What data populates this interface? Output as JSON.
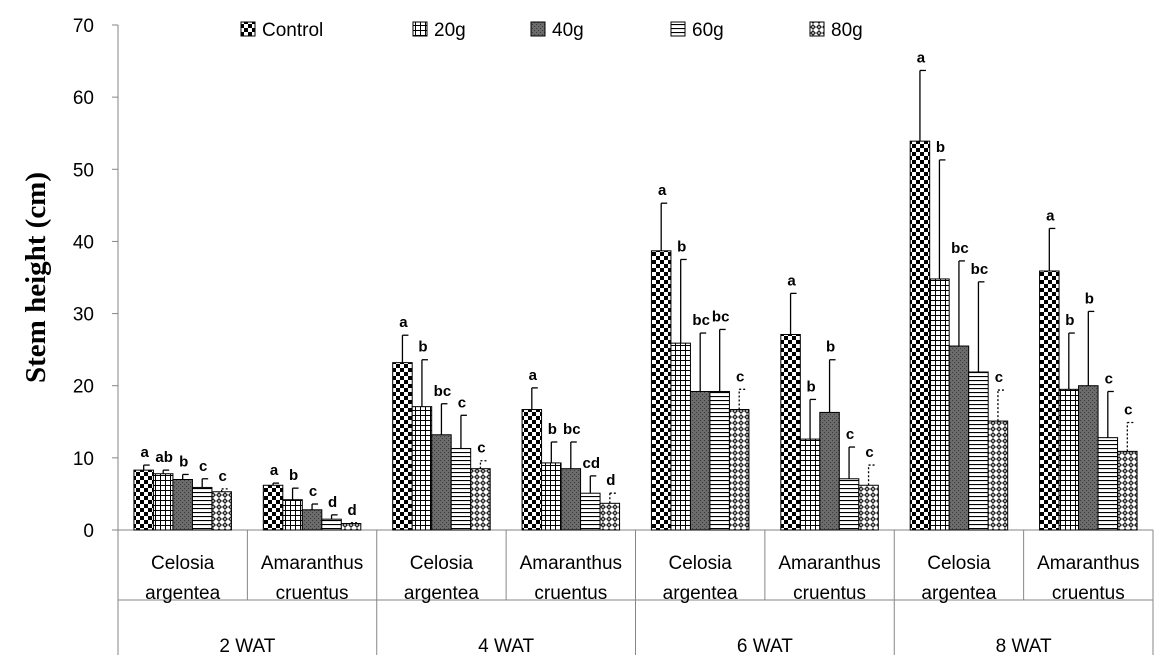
{
  "chart_data": {
    "type": "bar",
    "ylabel": "Stem height (cm)",
    "ylim": [
      0,
      70
    ],
    "yticks": [
      0,
      10,
      20,
      30,
      40,
      50,
      60,
      70
    ],
    "grid": false,
    "legend_position": "top",
    "groups": [
      "2 WAT",
      "4 WAT",
      "6 WAT",
      "8 WAT"
    ],
    "categories": [
      {
        "group": "2 WAT",
        "line1": "Celosia",
        "line2": "argentea"
      },
      {
        "group": "2 WAT",
        "line1": "Amaranthus",
        "line2": "cruentus"
      },
      {
        "group": "4 WAT",
        "line1": "Celosia",
        "line2": "argentea"
      },
      {
        "group": "4 WAT",
        "line1": "Amaranthus",
        "line2": "cruentus"
      },
      {
        "group": "6 WAT",
        "line1": "Celosia",
        "line2": "argentea"
      },
      {
        "group": "6 WAT",
        "line1": "Amaranthus",
        "line2": "cruentus"
      },
      {
        "group": "8 WAT",
        "line1": "Celosia",
        "line2": "argentea"
      },
      {
        "group": "8 WAT",
        "line1": "Amaranthus",
        "line2": "cruentus"
      }
    ],
    "series": [
      {
        "name": "Control",
        "pattern": "checker",
        "values": [
          8.3,
          6.2,
          23.2,
          16.7,
          38.7,
          27.1,
          53.9,
          35.9
        ],
        "errors": [
          0.7,
          0.3,
          3.8,
          3.0,
          6.6,
          5.7,
          9.8,
          5.9
        ],
        "letters": [
          "a",
          "a",
          "a",
          "a",
          "a",
          "a",
          "a",
          "a"
        ]
      },
      {
        "name": "20g",
        "pattern": "grid",
        "values": [
          7.8,
          4.2,
          17.1,
          9.3,
          25.9,
          12.6,
          34.8,
          19.5
        ],
        "errors": [
          0.5,
          1.6,
          6.5,
          2.9,
          11.6,
          5.5,
          16.5,
          7.8
        ],
        "letters": [
          "ab",
          "b",
          "b",
          "b",
          "b",
          "b",
          "b",
          "b"
        ]
      },
      {
        "name": "40g",
        "pattern": "dark",
        "values": [
          7.0,
          2.8,
          13.2,
          8.5,
          19.2,
          16.3,
          25.5,
          20.0
        ],
        "errors": [
          0.7,
          0.8,
          4.3,
          3.7,
          8.1,
          7.3,
          11.8,
          10.3
        ],
        "letters": [
          "b",
          "c",
          "bc",
          "bc",
          "bc",
          "b",
          "bc",
          "b"
        ]
      },
      {
        "name": "60g",
        "pattern": "hstripe",
        "values": [
          5.9,
          1.5,
          11.3,
          5.1,
          19.2,
          7.1,
          21.9,
          12.8
        ],
        "errors": [
          1.2,
          0.6,
          4.6,
          2.4,
          8.6,
          4.4,
          12.5,
          6.4
        ],
        "letters": [
          "c",
          "d",
          "c",
          "cd",
          "bc",
          "c",
          "bc",
          "c"
        ]
      },
      {
        "name": "80g",
        "pattern": "diamond",
        "values": [
          5.3,
          0.9,
          8.5,
          3.7,
          16.7,
          6.2,
          15.1,
          10.9
        ],
        "errors": [
          0.4,
          0.1,
          1.1,
          1.4,
          2.8,
          2.8,
          4.3,
          4.0
        ],
        "letters": [
          "c",
          "d",
          "c",
          "d",
          "c",
          "c",
          "c",
          "c"
        ]
      }
    ]
  }
}
